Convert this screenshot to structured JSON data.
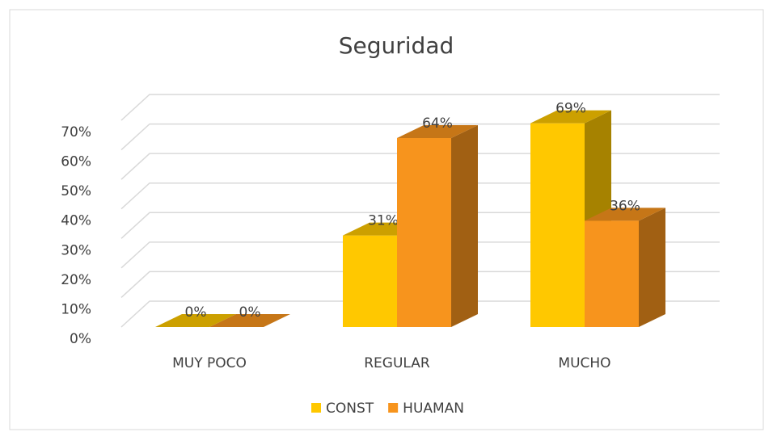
{
  "chart_data": {
    "type": "bar3d",
    "title": "Seguridad",
    "categories": [
      "MUY POCO",
      "REGULAR",
      "MUCHO"
    ],
    "series": [
      {
        "name": "CONST",
        "color": "#ffc800",
        "values": [
          0,
          31,
          69
        ],
        "value_labels": [
          "0%",
          "31%",
          "69%"
        ]
      },
      {
        "name": "HUAMAN",
        "color": "#f7941d",
        "values": [
          0,
          64,
          36
        ],
        "value_labels": [
          "0%",
          "64%",
          "36%"
        ]
      }
    ],
    "ylim": [
      0,
      70
    ],
    "yticks": [
      {
        "value": 0,
        "label": "0%"
      },
      {
        "value": 10,
        "label": "10%"
      },
      {
        "value": 20,
        "label": "20%"
      },
      {
        "value": 30,
        "label": "30%"
      },
      {
        "value": 40,
        "label": "40%"
      },
      {
        "value": 50,
        "label": "50%"
      },
      {
        "value": 60,
        "label": "60%"
      },
      {
        "value": 70,
        "label": "70%"
      }
    ],
    "grid": true,
    "legend": "bottom"
  }
}
